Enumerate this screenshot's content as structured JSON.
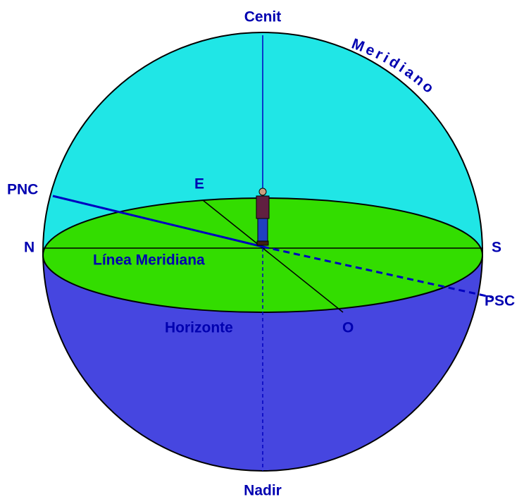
{
  "labels": {
    "zenith": "Cenit",
    "meridian": "Meridiano",
    "north_celestial_pole": "PNC",
    "east": "E",
    "north": "N",
    "meridian_line": "Línea Meridiana",
    "south": "S",
    "south_celestial_pole": "PSC",
    "horizon": "Horizonte",
    "west": "O",
    "nadir": "Nadir"
  }
}
